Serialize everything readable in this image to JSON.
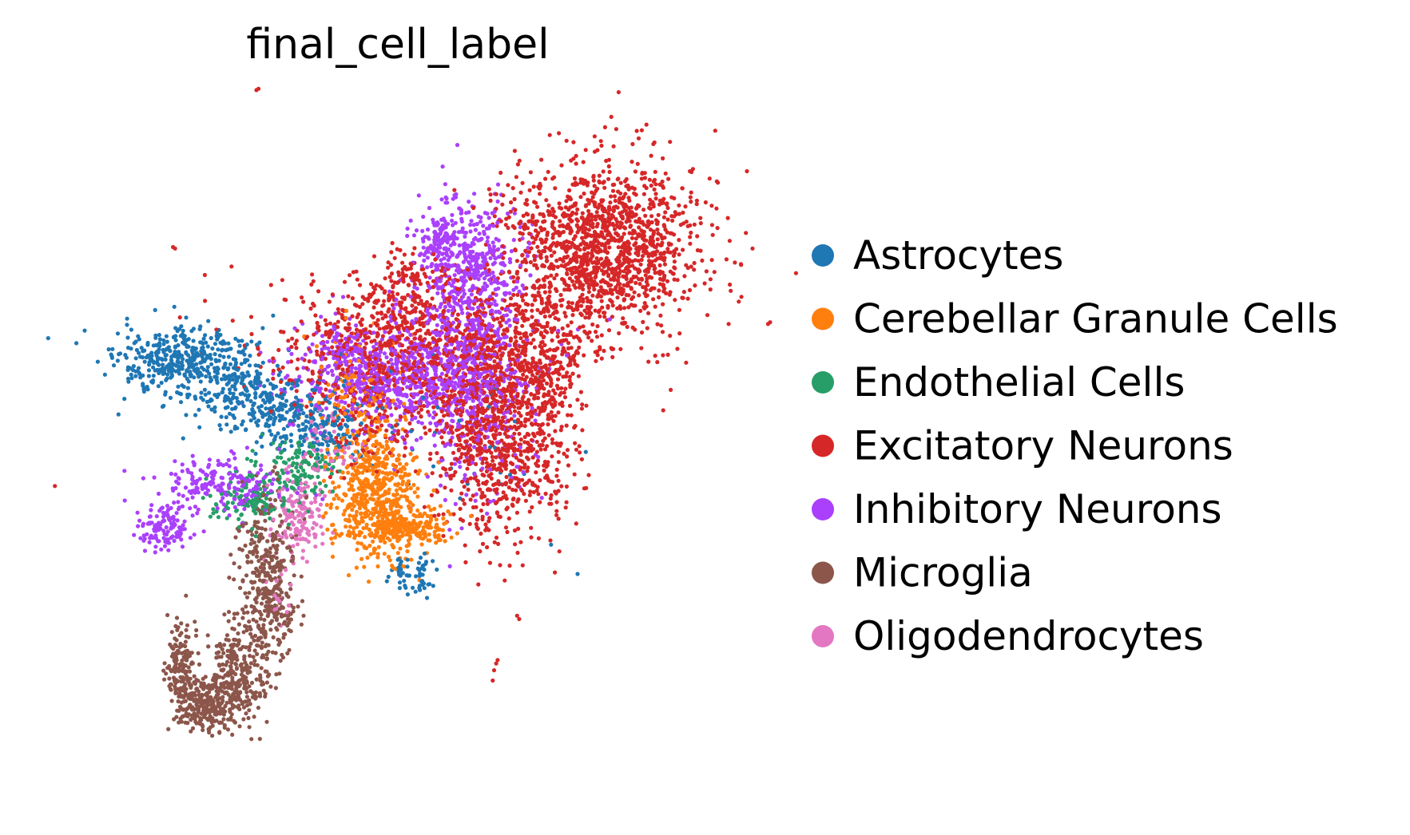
{
  "chart_data": {
    "type": "scatter",
    "title": "final_cell_label",
    "xlabel": "",
    "ylabel": "",
    "grid": false,
    "axes_visible": false,
    "legend_position": "right",
    "xlim": [
      0,
      100
    ],
    "ylim": [
      0,
      100
    ],
    "categories": [
      "Astrocytes",
      "Cerebellar Granule Cells",
      "Endothelial Cells",
      "Excitatory Neurons",
      "Inhibitory Neurons",
      "Microglia",
      "Oligodendrocytes"
    ],
    "colors": {
      "Astrocytes": "#1f77b4",
      "Cerebellar Granule Cells": "#ff7f0e",
      "Endothelial Cells": "#279e68",
      "Excitatory Neurons": "#d62728",
      "Inhibitory Neurons": "#aa40fc",
      "Microglia": "#8c564b",
      "Oligodendrocytes": "#e377c2"
    },
    "series": [
      {
        "name": "Astrocytes",
        "clusters": [
          {
            "x": 20,
            "y": 62,
            "sx": 5,
            "sy": 2.5,
            "n": 450
          },
          {
            "x": 31,
            "y": 56,
            "sx": 5,
            "sy": 2.5,
            "n": 300
          },
          {
            "x": 40,
            "y": 52,
            "sx": 3,
            "sy": 2,
            "n": 120
          },
          {
            "x": 53,
            "y": 31,
            "sx": 1.5,
            "sy": 1.5,
            "n": 60
          },
          {
            "x": 60,
            "y": 54,
            "sx": 8,
            "sy": 8,
            "n": 40
          }
        ]
      },
      {
        "name": "Cerebellar Granule Cells",
        "clusters": [
          {
            "x": 47,
            "y": 43,
            "sx": 3,
            "sy": 5,
            "n": 500
          },
          {
            "x": 51,
            "y": 38,
            "sx": 3.5,
            "sy": 1.5,
            "n": 250
          },
          {
            "x": 45,
            "y": 57,
            "sx": 3,
            "sy": 5,
            "n": 150
          }
        ]
      },
      {
        "name": "Endothelial Cells",
        "clusters": [
          {
            "x": 30,
            "y": 42,
            "sx": 3,
            "sy": 2,
            "n": 120
          },
          {
            "x": 36,
            "y": 47,
            "sx": 3,
            "sy": 2,
            "n": 120
          }
        ]
      },
      {
        "name": "Excitatory Neurons",
        "clusters": [
          {
            "x": 80,
            "y": 79,
            "sx": 7,
            "sy": 6,
            "n": 1400
          },
          {
            "x": 65,
            "y": 52,
            "sx": 5,
            "sy": 8,
            "n": 900
          },
          {
            "x": 55,
            "y": 64,
            "sx": 12,
            "sy": 5,
            "n": 900
          },
          {
            "x": 52,
            "y": 73,
            "sx": 3,
            "sy": 3,
            "n": 150
          },
          {
            "x": 46,
            "y": 58,
            "sx": 4,
            "sy": 6,
            "n": 200
          },
          {
            "x": 72,
            "y": 62,
            "sx": 3,
            "sy": 7,
            "n": 200
          }
        ],
        "outliers": [
          {
            "x": 30,
            "y": 102
          },
          {
            "x": 30.3,
            "y": 102.2
          },
          {
            "x": 18,
            "y": 79
          },
          {
            "x": 18.3,
            "y": 78.8
          },
          {
            "x": 1,
            "y": 44
          },
          {
            "x": 38,
            "y": 75
          },
          {
            "x": 38.2,
            "y": 74
          },
          {
            "x": 38.5,
            "y": 69
          },
          {
            "x": 40.5,
            "y": 71
          },
          {
            "x": 67.5,
            "y": 25
          },
          {
            "x": 67.8,
            "y": 24.5
          },
          {
            "x": 64.5,
            "y": 18
          },
          {
            "x": 64.2,
            "y": 17
          },
          {
            "x": 64,
            "y": 15.5
          },
          {
            "x": 64.7,
            "y": 18.5
          }
        ]
      },
      {
        "name": "Inhibitory Neurons",
        "clusters": [
          {
            "x": 50,
            "y": 60,
            "sx": 8,
            "sy": 4,
            "n": 700
          },
          {
            "x": 61,
            "y": 63,
            "sx": 4,
            "sy": 10,
            "n": 600
          },
          {
            "x": 60,
            "y": 78,
            "sx": 3.5,
            "sy": 4,
            "n": 300
          },
          {
            "x": 25,
            "y": 44,
            "sx": 5,
            "sy": 2,
            "n": 200
          },
          {
            "x": 17,
            "y": 38,
            "sx": 2,
            "sy": 1.5,
            "n": 120
          },
          {
            "x": 56,
            "y": 80,
            "sx": 1,
            "sy": 1.5,
            "n": 60
          },
          {
            "x": 43,
            "y": 64,
            "sx": 2,
            "sy": 2,
            "n": 80
          }
        ]
      },
      {
        "name": "Microglia",
        "clusters": [
          {
            "x": 31.5,
            "y": 29,
            "sx": 2,
            "sy": 7,
            "n": 400
          },
          {
            "x": 27,
            "y": 16,
            "sx": 2,
            "sy": 3.5,
            "n": 250
          },
          {
            "x": 22.5,
            "y": 12,
            "sx": 2,
            "sy": 2,
            "n": 250
          },
          {
            "x": 19,
            "y": 18,
            "sx": 1,
            "sy": 3,
            "n": 150
          }
        ]
      },
      {
        "name": "Oligodendrocytes",
        "clusters": [
          {
            "x": 36,
            "y": 40,
            "sx": 2,
            "sy": 3,
            "n": 150
          },
          {
            "x": 40,
            "y": 50,
            "sx": 2,
            "sy": 3,
            "n": 60
          },
          {
            "x": 33,
            "y": 27,
            "sx": 1,
            "sy": 2,
            "n": 20
          }
        ]
      }
    ]
  }
}
